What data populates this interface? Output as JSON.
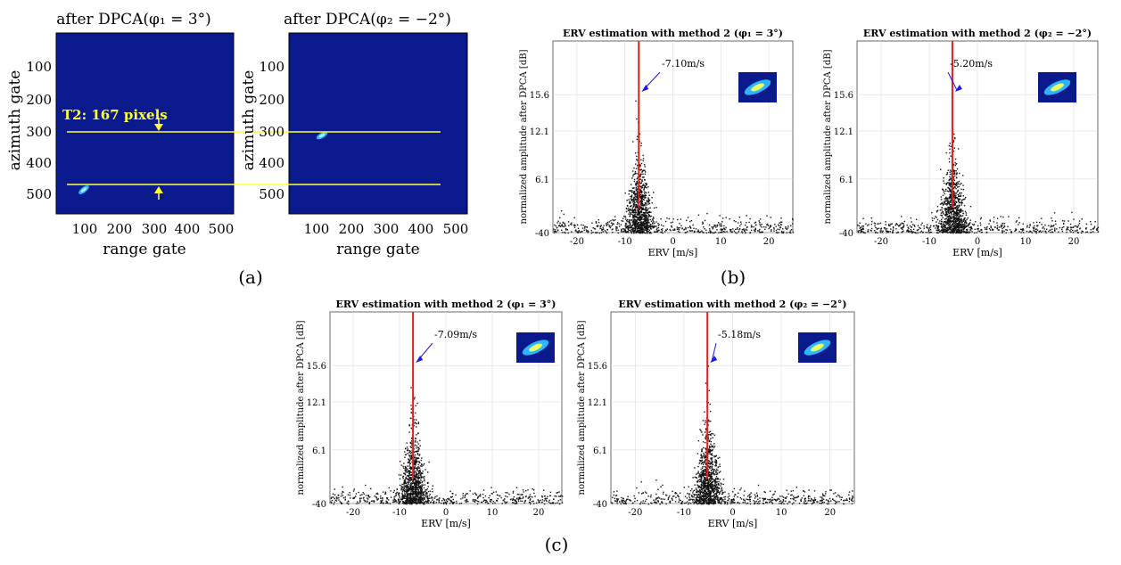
{
  "panels": {
    "a": {
      "label": "(a)",
      "ylabel": "azimuth gate",
      "xlabel": "range gate",
      "left_title": "after DPCA(φ₁ = 3°)",
      "right_title": "after DPCA(φ₂ = −2°)",
      "y_ticks": [
        "100",
        "200",
        "300",
        "400",
        "500"
      ],
      "x_ticks_left": [
        "100",
        "200",
        "300",
        "400",
        "500"
      ],
      "x_ticks_right": [
        "100",
        "200",
        "300",
        "400",
        "500"
      ],
      "annotation": "T2: 167 pixels"
    },
    "b": {
      "label": "(b)"
    },
    "c": {
      "label": "(c)"
    }
  },
  "colors": {
    "map_bg": "#0a1a8c",
    "line": "#ffff33",
    "red": "#e0201a",
    "arrow": "#1a1ae6"
  },
  "chart_data": [
    {
      "type": "scatter",
      "panel": "b-left",
      "title": "ERV estimation with method 2 (φ₁ = 3°)",
      "xlabel": "ERV [m/s]",
      "ylabel": "normalized amplitude after DPCA [dB]",
      "xlim": [
        -25,
        25
      ],
      "ylim": [
        -40,
        20
      ],
      "x_ticks": [
        "-20",
        "-10",
        "0",
        "10",
        "20"
      ],
      "y_ticks": [
        "-40",
        "6.1",
        "12.1",
        "15.6"
      ],
      "peak_erv": -7.1,
      "annotation": "-7.10m/s"
    },
    {
      "type": "scatter",
      "panel": "b-right",
      "title": "ERV estimation with method 2 (φ₂ = −2°)",
      "xlabel": "ERV [m/s]",
      "ylabel": "normalized amplitude after DPCA [dB]",
      "xlim": [
        -25,
        25
      ],
      "ylim": [
        -40,
        20
      ],
      "x_ticks": [
        "-20",
        "-10",
        "0",
        "10",
        "20"
      ],
      "y_ticks": [
        "-40",
        "6.1",
        "12.1",
        "15.6"
      ],
      "peak_erv": -5.2,
      "annotation": "-5.20m/s"
    },
    {
      "type": "scatter",
      "panel": "c-left",
      "title": "ERV estimation with method 2 (φ₁ = 3°)",
      "xlabel": "ERV [m/s]",
      "ylabel": "normalized amplitude after DPCA [dB]",
      "xlim": [
        -25,
        25
      ],
      "ylim": [
        -40,
        20
      ],
      "x_ticks": [
        "-20",
        "-10",
        "0",
        "10",
        "20"
      ],
      "y_ticks": [
        "-40",
        "6.1",
        "12.1",
        "15.6"
      ],
      "peak_erv": -7.09,
      "annotation": "-7.09m/s"
    },
    {
      "type": "scatter",
      "panel": "c-right",
      "title": "ERV estimation with method 2 (φ₂ = −2°)",
      "xlabel": "ERV [m/s]",
      "ylabel": "normalized amplitude after DPCA [dB]",
      "xlim": [
        -25,
        25
      ],
      "ylim": [
        -40,
        20
      ],
      "x_ticks": [
        "-20",
        "-10",
        "0",
        "10",
        "20"
      ],
      "y_ticks": [
        "-40",
        "6.1",
        "12.1",
        "15.6"
      ],
      "peak_erv": -5.18,
      "annotation": "-5.18m/s"
    }
  ]
}
